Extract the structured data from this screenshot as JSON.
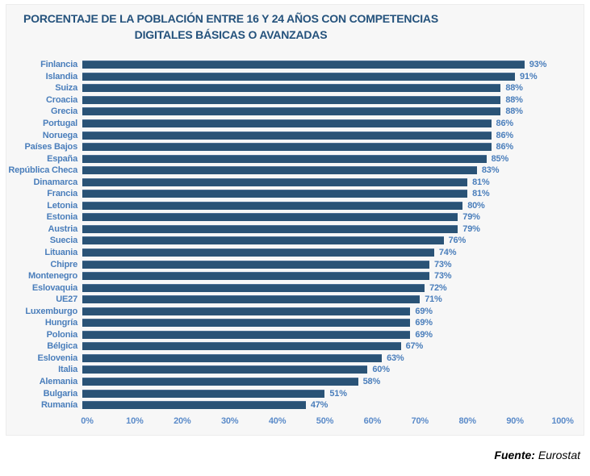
{
  "chart": {
    "title_line1": "PORCENTAJE DE LA POBLACIÓN ENTRE 16 Y 24 AÑOS CON COMPETENCIAS",
    "title_line2": "DIGITALES BÁSICAS O AVANZADAS"
  },
  "source": {
    "label": "Fuente:",
    "value": " Eurostat"
  },
  "colors": {
    "bar": "#2a5376",
    "label_blue": "#4a7ebb",
    "axis_blue": "#5b8bc9",
    "title_blue": "#24527c",
    "panel_bg": "#f7f7f7"
  },
  "chart_data": {
    "type": "bar",
    "orientation": "horizontal",
    "title": "PORCENTAJE DE LA POBLACIÓN ENTRE 16 Y 24 AÑOS CON COMPETENCIAS DIGITALES BÁSICAS O AVANZADAS",
    "categories": [
      "Finlancia",
      "Islandia",
      "Suiza",
      "Croacia",
      "Grecia",
      "Portugal",
      "Noruega",
      "Países Bajos",
      "España",
      "República Checa",
      "Dinamarca",
      "Francia",
      "Letonia",
      "Estonia",
      "Austria",
      "Suecia",
      "Lituania",
      "Chipre",
      "Montenegro",
      "Eslovaquia",
      "UE27",
      "Luxemburgo",
      "Hungría",
      "Polonia",
      "Bélgica",
      "Eslovenia",
      "Italia",
      "Alemania",
      "Bulgaria",
      "Rumanía"
    ],
    "values": [
      93,
      91,
      88,
      88,
      88,
      86,
      86,
      86,
      85,
      83,
      81,
      81,
      80,
      79,
      79,
      76,
      74,
      73,
      73,
      72,
      71,
      69,
      69,
      69,
      67,
      63,
      60,
      58,
      51,
      47
    ],
    "value_label_suffix": "%",
    "x_ticks": [
      "0%",
      "10%",
      "20%",
      "30%",
      "40%",
      "50%",
      "60%",
      "70%",
      "80%",
      "90%",
      "100%"
    ],
    "xlim": [
      0,
      100
    ],
    "grid": false,
    "legend": false,
    "source": "Fuente: Eurostat"
  }
}
